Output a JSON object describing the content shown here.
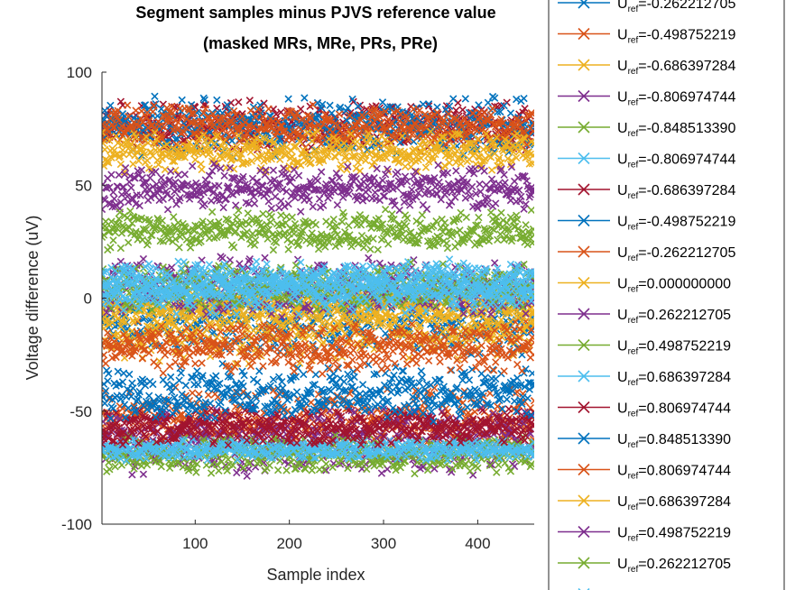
{
  "chart_data": {
    "type": "scatter",
    "title": "Segment samples minus PJVS reference value",
    "subtitle": "(masked MRs, MRe, PRs, PRe)",
    "xlabel": "Sample index",
    "ylabel": "Voltage difference (uV)",
    "xlim": [
      1,
      460
    ],
    "ylim": [
      -100,
      100
    ],
    "xticks": [
      "100",
      "200",
      "300",
      "400"
    ],
    "yticks": [
      "100",
      "50",
      "0",
      "-50",
      "-100"
    ],
    "marker": "x",
    "grid": false,
    "legend_position": "right-outside",
    "legend_prefix": "U",
    "legend_sub": "ref",
    "series": [
      {
        "name": "=-0.262212705",
        "value_range": [
          -26,
          6
        ],
        "color": "#0072BD"
      },
      {
        "name": "=-0.498752219",
        "value_range": [
          -70,
          -38
        ],
        "color": "#D95319"
      },
      {
        "name": "=-0.686397284",
        "value_range": [
          -30,
          2
        ],
        "color": "#EDB120"
      },
      {
        "name": "=-0.806974744",
        "value_range": [
          -80,
          -47
        ],
        "color": "#7E2F8E"
      },
      {
        "name": "=-0.848513390",
        "value_range": [
          -78,
          -60
        ],
        "color": "#77AC30"
      },
      {
        "name": "=-0.806974744",
        "value_range": [
          -72,
          -62
        ],
        "color": "#4DBEEE"
      },
      {
        "name": "=-0.686397284",
        "value_range": [
          -66,
          -48
        ],
        "color": "#A2142F"
      },
      {
        "name": "=-0.498752219",
        "value_range": [
          -55,
          -28
        ],
        "color": "#0072BD"
      },
      {
        "name": "=-0.262212705",
        "value_range": [
          -34,
          -10
        ],
        "color": "#D95319"
      },
      {
        "name": "=0.000000000",
        "value_range": [
          -12,
          6
        ],
        "color": "#EDB120"
      },
      {
        "name": "=0.262212705",
        "value_range": [
          -10,
          20
        ],
        "color": "#7E2F8E"
      },
      {
        "name": "=0.498752219",
        "value_range": [
          -6,
          16
        ],
        "color": "#77AC30"
      },
      {
        "name": "=0.686397284",
        "value_range": [
          -8,
          18
        ],
        "color": "#4DBEEE"
      },
      {
        "name": "=0.806974744",
        "value_range": [
          64,
          88
        ],
        "color": "#A2142F"
      },
      {
        "name": "=0.848513390",
        "value_range": [
          62,
          90
        ],
        "color": "#0072BD"
      },
      {
        "name": "=0.806974744",
        "value_range": [
          66,
          86
        ],
        "color": "#D95319"
      },
      {
        "name": "=0.686397284",
        "value_range": [
          55,
          74
        ],
        "color": "#EDB120"
      },
      {
        "name": "=0.498752219",
        "value_range": [
          38,
          60
        ],
        "color": "#7E2F8E"
      },
      {
        "name": "=0.262212705",
        "value_range": [
          20,
          40
        ],
        "color": "#77AC30"
      },
      {
        "name": "",
        "value_range": [
          -4,
          16
        ],
        "color": "#4DBEEE"
      }
    ]
  }
}
